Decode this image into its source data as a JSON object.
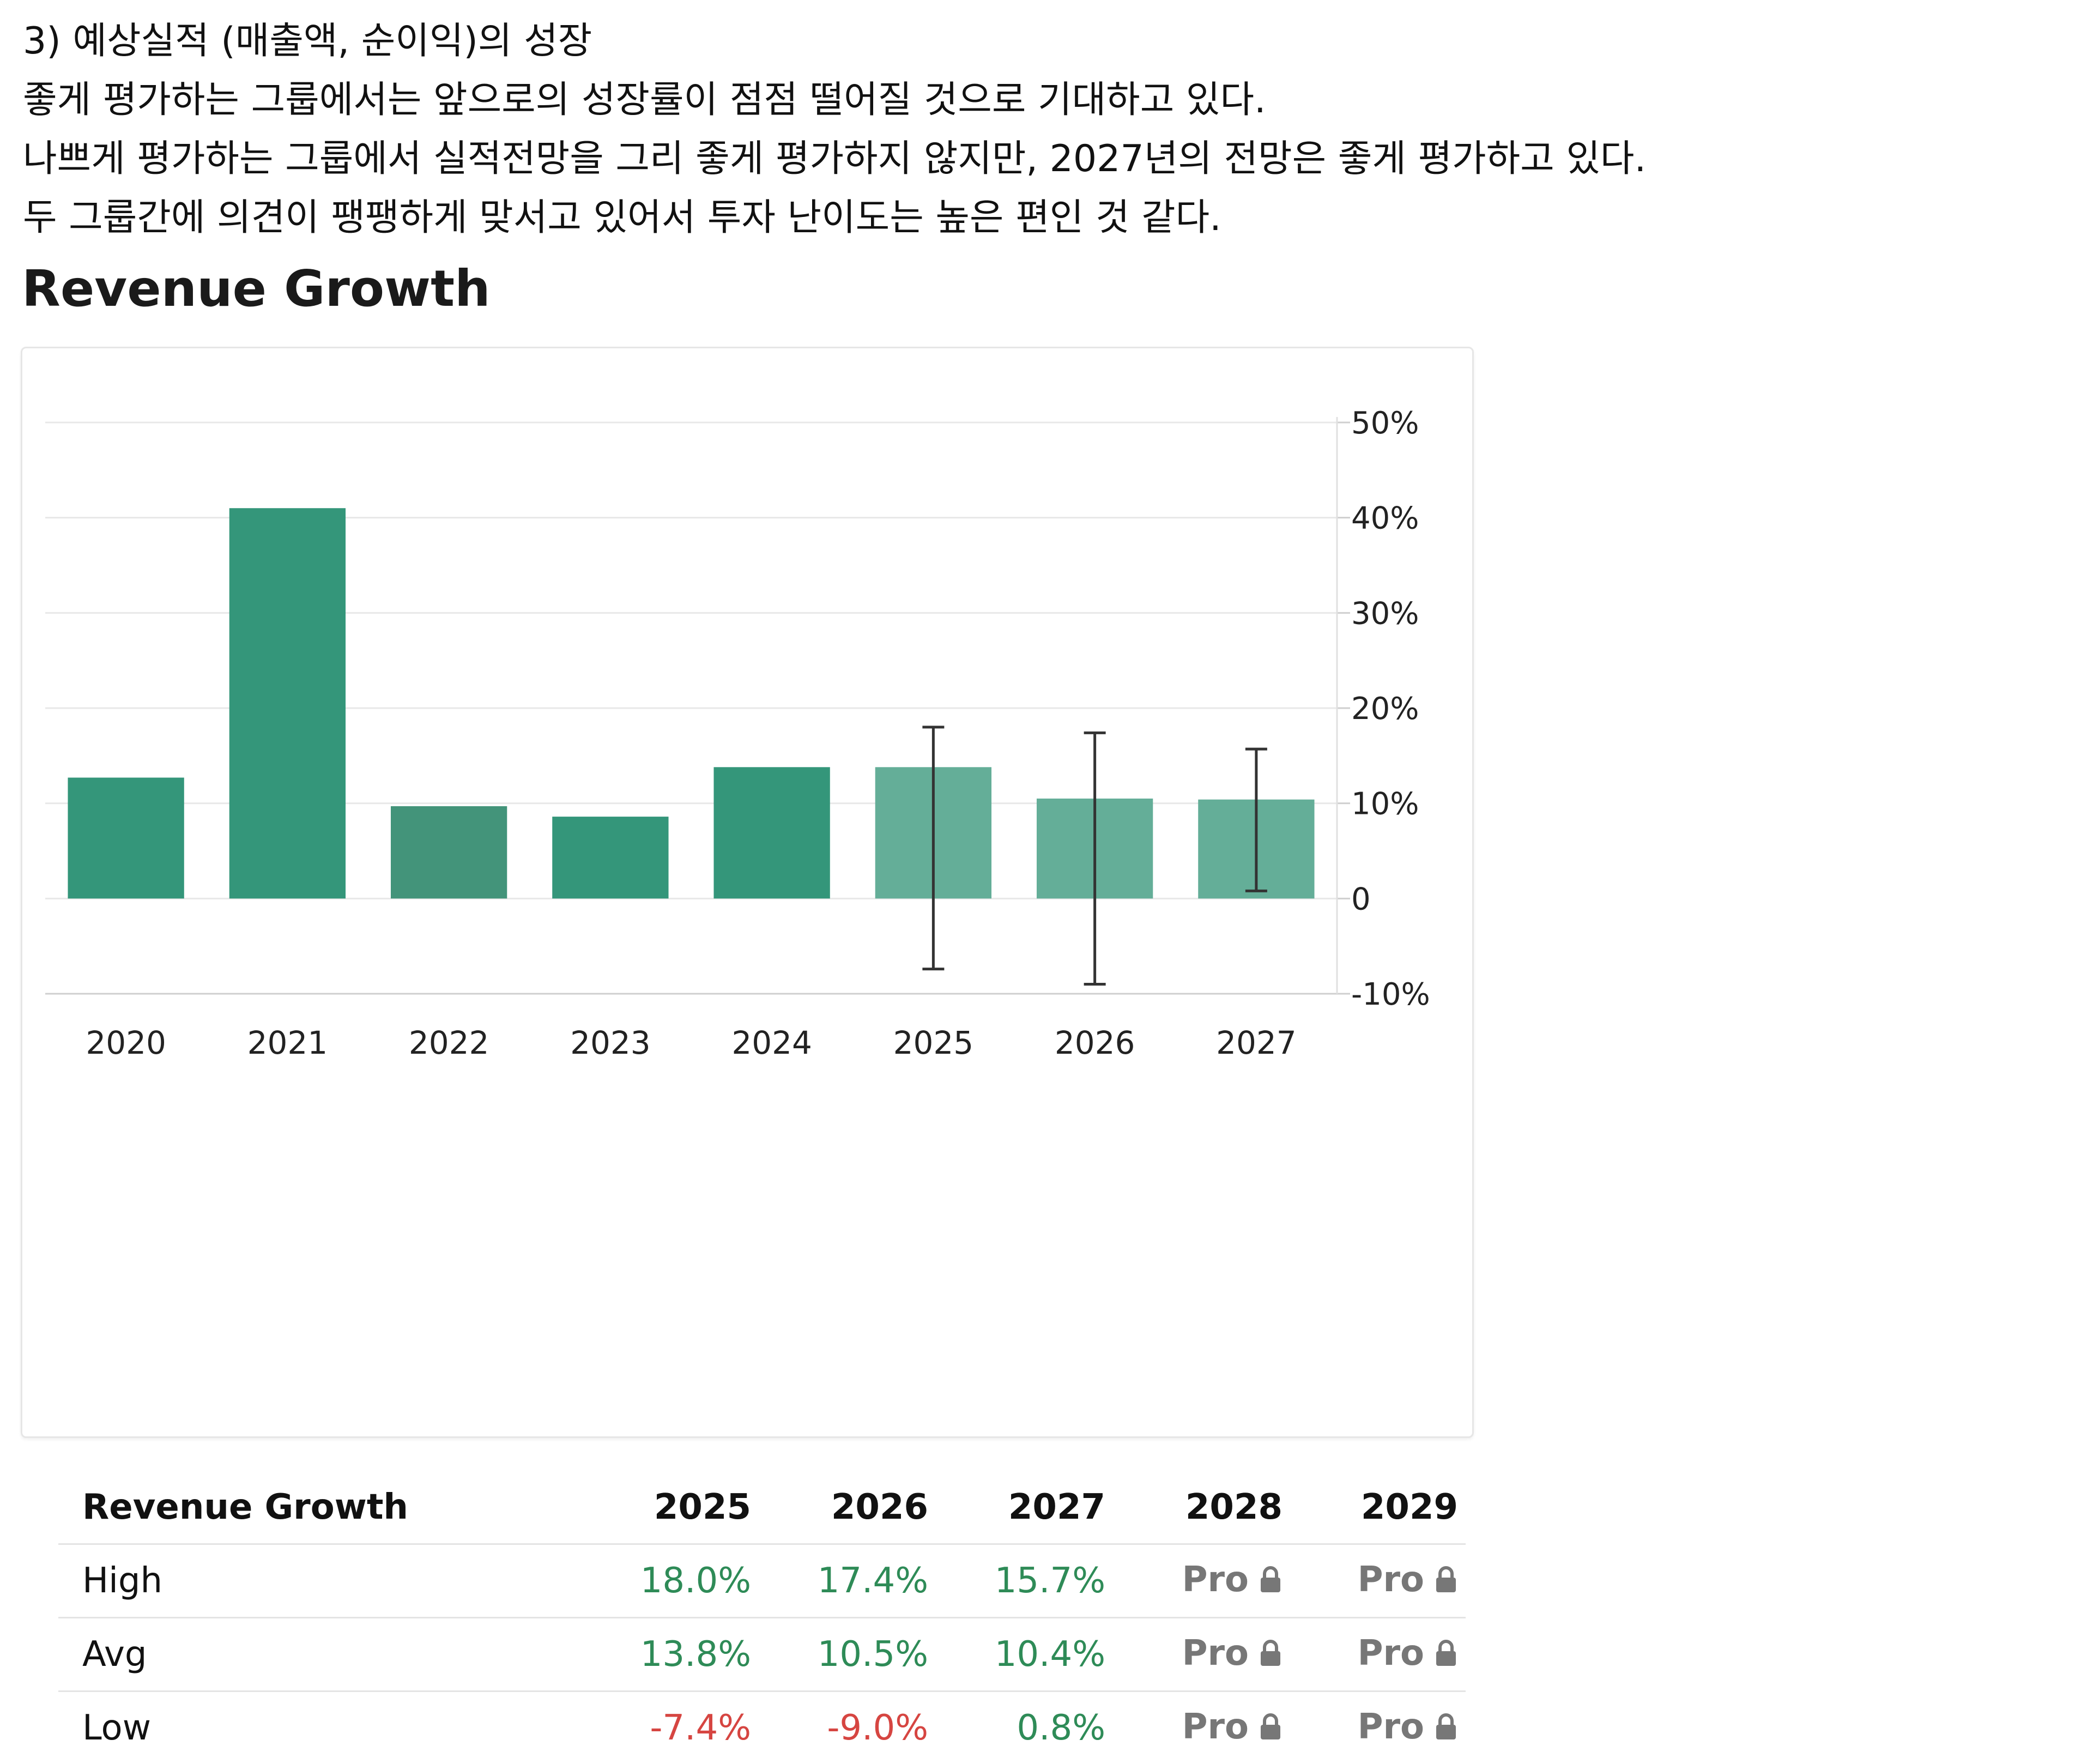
{
  "intro": {
    "heading": "3) 예상실적 (매출액, 순이익)의 성장",
    "lines": [
      "좋게 평가하는 그룹에서는 앞으로의 성장률이 점점 떨어질 것으로 기대하고 있다.",
      "나쁘게 평가하는 그룹에서 실적전망을 그리 좋게 평가하지 않지만, 2027년의 전망은 좋게 평가하고 있다.",
      "두 그룹간에 의견이 팽팽하게 맞서고 있어서 투자 난이도는 높은 편인 것 같다."
    ]
  },
  "section_title": "Revenue Growth",
  "colors": {
    "actual_bar": "#34967a",
    "actual_bar_alt": "#43947a",
    "estimate_bar": "#64ae98",
    "error_bar": "#333333",
    "grid": "#e8e8e8",
    "positive": "#2e8b57",
    "negative": "#d64541",
    "pro": "#777777"
  },
  "chart_data": {
    "type": "bar",
    "categories": [
      "2020",
      "2021",
      "2022",
      "2023",
      "2024",
      "2025",
      "2026",
      "2027"
    ],
    "values": [
      12.7,
      41.0,
      9.7,
      8.6,
      13.8,
      13.8,
      10.5,
      10.4
    ],
    "estimate": [
      false,
      false,
      false,
      false,
      false,
      true,
      true,
      true
    ],
    "error_high": [
      null,
      null,
      null,
      null,
      null,
      18.0,
      17.4,
      15.7
    ],
    "error_low": [
      null,
      null,
      null,
      null,
      null,
      -7.4,
      -9.0,
      0.8
    ],
    "ylim": [
      -10,
      50
    ],
    "yticks": [
      -10,
      0,
      10,
      20,
      30,
      40,
      50
    ],
    "ytick_labels": [
      "-10%",
      "0",
      "10%",
      "20%",
      "30%",
      "40%",
      "50%"
    ],
    "y_axis_side": "right",
    "grid": true,
    "title": "",
    "xlabel": "",
    "ylabel": ""
  },
  "table": {
    "header": [
      "Revenue Growth",
      "2025",
      "2026",
      "2027",
      "2028",
      "2029"
    ],
    "rows": [
      {
        "label": "High",
        "cells": [
          {
            "text": "18.0%",
            "tone": "pos"
          },
          {
            "text": "17.4%",
            "tone": "pos"
          },
          {
            "text": "15.7%",
            "tone": "pos"
          },
          {
            "text": "Pro",
            "tone": "pro",
            "icon": "lock-icon"
          },
          {
            "text": "Pro",
            "tone": "pro",
            "icon": "lock-icon"
          }
        ]
      },
      {
        "label": "Avg",
        "cells": [
          {
            "text": "13.8%",
            "tone": "pos"
          },
          {
            "text": "10.5%",
            "tone": "pos"
          },
          {
            "text": "10.4%",
            "tone": "pos"
          },
          {
            "text": "Pro",
            "tone": "pro",
            "icon": "lock-icon"
          },
          {
            "text": "Pro",
            "tone": "pro",
            "icon": "lock-icon"
          }
        ]
      },
      {
        "label": "Low",
        "cells": [
          {
            "text": "-7.4%",
            "tone": "neg"
          },
          {
            "text": "-9.0%",
            "tone": "neg"
          },
          {
            "text": "0.8%",
            "tone": "pos"
          },
          {
            "text": "Pro",
            "tone": "pro",
            "icon": "lock-icon"
          },
          {
            "text": "Pro",
            "tone": "pro",
            "icon": "lock-icon"
          }
        ]
      }
    ]
  }
}
